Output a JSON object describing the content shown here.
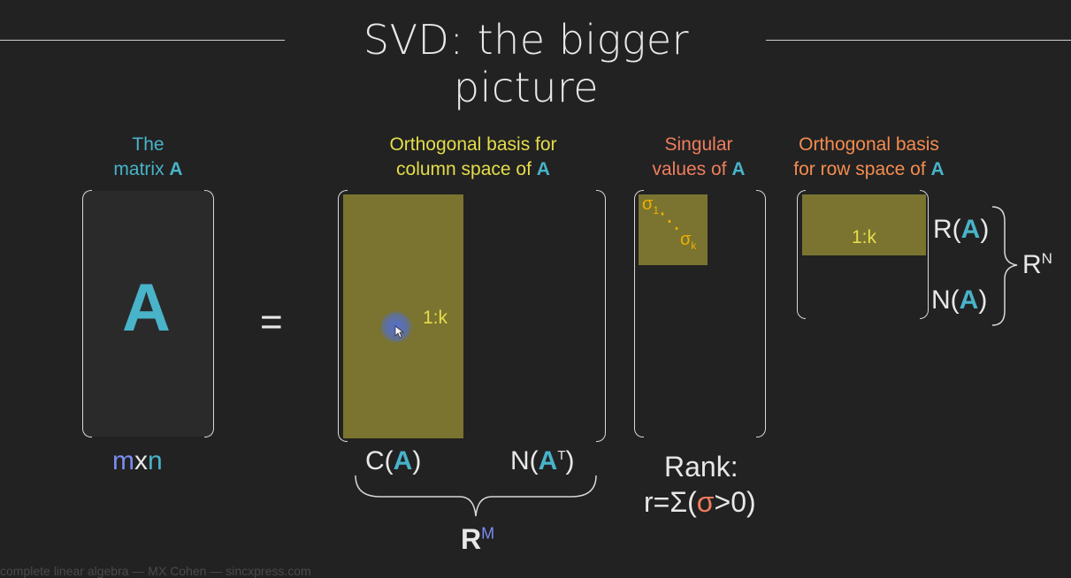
{
  "title": "SVD: the bigger picture",
  "headers": {
    "matrix": {
      "line1": "The",
      "line2_prefix": "matrix ",
      "line2_bold": "A"
    },
    "column": {
      "line1": "Orthogonal basis for",
      "line2_prefix": "column space of ",
      "line2_bold": "A"
    },
    "singular": {
      "line1": "Singular",
      "line2_prefix": "values of ",
      "line2_bold": "A"
    },
    "row": {
      "line1": "Orthogonal basis",
      "line2_prefix": "for row space of ",
      "line2_bold": "A"
    }
  },
  "matrix_letter": "A",
  "equals": "=",
  "dims": {
    "m": "m",
    "x": "x",
    "n": "n"
  },
  "u_block_label": "1:k",
  "v_block_label": "1:k",
  "sigma": {
    "first": "σ",
    "first_sub": "1",
    "dots": "⋱",
    "last": "σ",
    "last_sub": "k"
  },
  "col_space": {
    "prefix": "C(",
    "letter": "A",
    "suffix": ")"
  },
  "left_null": {
    "prefix": "N(",
    "letter": "A",
    "sup": "T",
    "suffix": ")"
  },
  "rm": {
    "base": "R",
    "sup": "M"
  },
  "rank": {
    "line1": "Rank:",
    "prefix": "r=Σ(",
    "sigma": "σ",
    "suffix": ">0)"
  },
  "row_space": {
    "prefix": "R(",
    "letter": "A",
    "suffix": ")"
  },
  "null_space": {
    "prefix": "N(",
    "letter": "A",
    "suffix": ")"
  },
  "rn": {
    "base": "R",
    "sup": "N"
  },
  "footer": "complete linear algebra — MX Cohen — sincxpress.com",
  "colors": {
    "teal": "#48b3c9",
    "yellow": "#e5dd4a",
    "block": "#7a7430",
    "salmon": "#f07d5e",
    "blue": "#7b8cf2"
  }
}
